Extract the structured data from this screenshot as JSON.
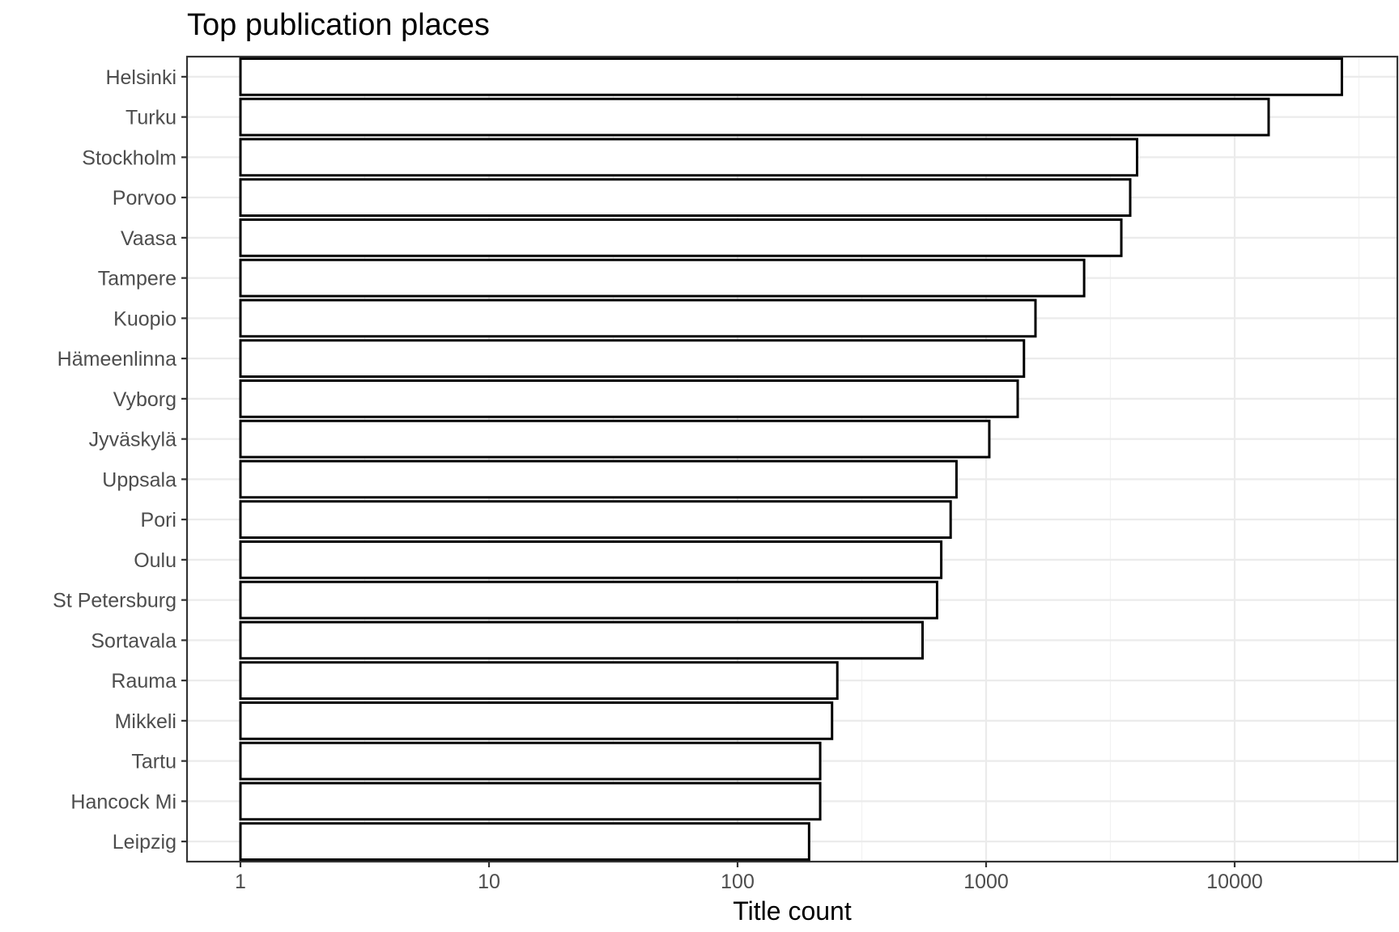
{
  "chart_data": {
    "type": "bar",
    "orientation": "horizontal",
    "title": "Top publication places",
    "xlabel": "Title count",
    "ylabel": "",
    "x_scale": "log10",
    "xlim": [
      1,
      40000
    ],
    "x_ticks": [
      1,
      10,
      100,
      1000,
      10000
    ],
    "x_tick_labels": [
      "1",
      "10",
      "100",
      "1000",
      "10000"
    ],
    "grid": true,
    "legend": "none",
    "bar_fill": "#ffffff",
    "bar_stroke": "#000000",
    "categories": [
      "Helsinki",
      "Turku",
      "Stockholm",
      "Porvoo",
      "Vaasa",
      "Tampere",
      "Kuopio",
      "Hämeenlinna",
      "Vyborg",
      "Jyväskylä",
      "Uppsala",
      "Pori",
      "Oulu",
      "St Petersburg",
      "Sortavala",
      "Rauma",
      "Mikkeli",
      "Tartu",
      "Hancock Mi",
      "Leipzig"
    ],
    "values": [
      27000,
      13700,
      4050,
      3800,
      3500,
      2480,
      1580,
      1420,
      1340,
      1030,
      760,
      720,
      660,
      635,
      555,
      252,
      240,
      215,
      215,
      194
    ]
  }
}
